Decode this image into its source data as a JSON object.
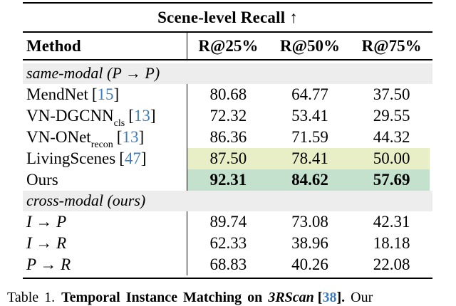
{
  "table": {
    "title": "Scene-level Recall ↑",
    "header": {
      "method": "Method",
      "cols": [
        "R@25%",
        "R@50%",
        "R@75%"
      ]
    },
    "sections": [
      {
        "label": "same-modal (P → P)"
      },
      {
        "label": "cross-modal (ours)"
      }
    ],
    "rows": [
      {
        "name": "MendNet",
        "sub": "",
        "br_l": "[",
        "cite": "15",
        "br_r": "]",
        "v": [
          "80.68",
          "64.77",
          "37.50"
        ]
      },
      {
        "name": "VN-DGCNN",
        "sub": "cls",
        "br_l": "[",
        "cite": "13",
        "br_r": "]",
        "v": [
          "72.32",
          "53.41",
          "29.55"
        ]
      },
      {
        "name": "VN-ONet",
        "sub": "recon",
        "br_l": "[",
        "cite": "13",
        "br_r": "]",
        "v": [
          "86.36",
          "71.59",
          "44.32"
        ]
      },
      {
        "name": "LivingScenes",
        "sub": "",
        "br_l": "[",
        "cite": "47",
        "br_r": "]",
        "v": [
          "87.50",
          "78.41",
          "50.00"
        ]
      },
      {
        "name": "Ours",
        "sub": "",
        "v": [
          "92.31",
          "84.62",
          "57.69"
        ]
      },
      {
        "name": "I → P",
        "v": [
          "89.74",
          "73.08",
          "42.31"
        ]
      },
      {
        "name": "I → R",
        "v": [
          "62.33",
          "38.96",
          "18.18"
        ]
      },
      {
        "name": "P → R",
        "v": [
          "68.83",
          "40.26",
          "22.08"
        ]
      }
    ],
    "colors": {
      "highlight_second": "#e8eec5",
      "highlight_best": "#c3e1cc",
      "section_band": "#ededed",
      "citation_blue": "#3d7dbf"
    }
  },
  "caption": {
    "label": "Table 1.",
    "title_prefix": "Temporal Instance Matching on ",
    "dataset": "3RScan",
    "br_l": "[",
    "cite": "38",
    "br_r": "]",
    "period": ".",
    "tail": " Our"
  }
}
